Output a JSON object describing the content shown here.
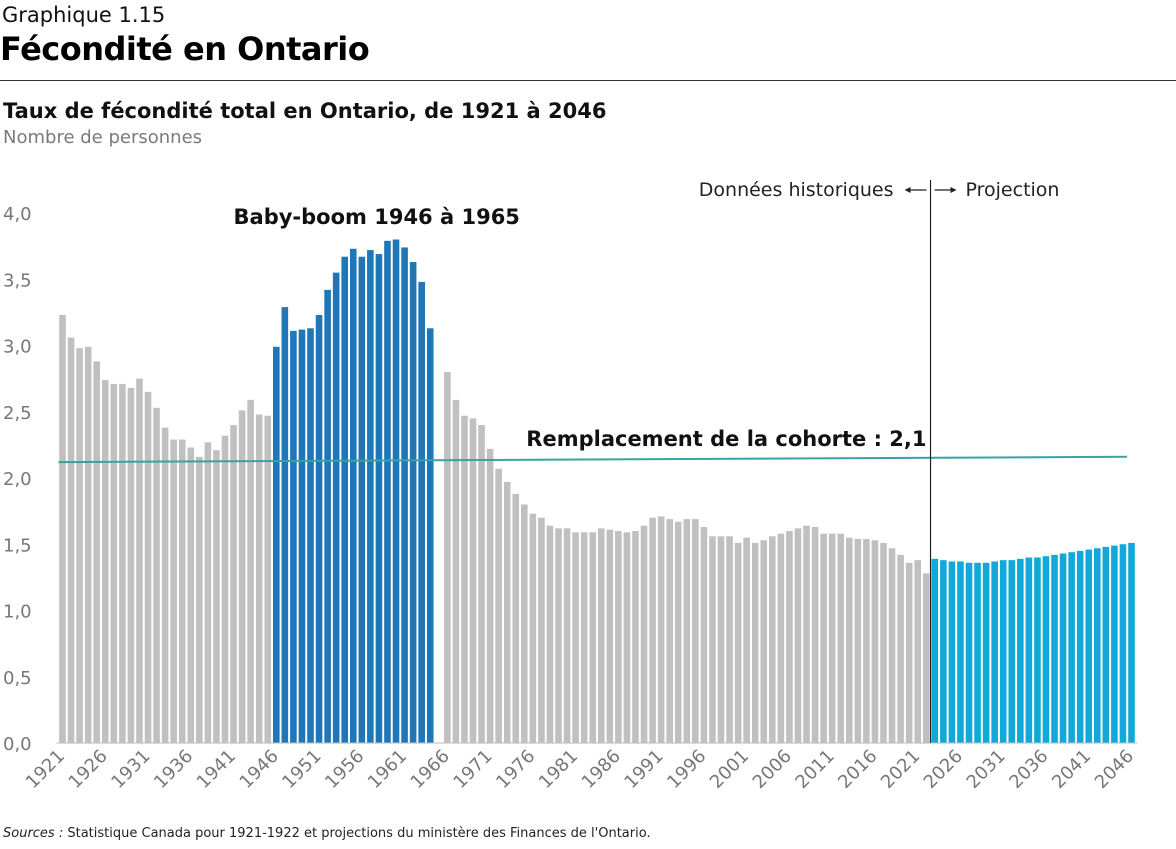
{
  "header": {
    "kicker": "Graphique 1.15",
    "title": "Fécondité en Ontario"
  },
  "chart_data": {
    "type": "bar",
    "title": "Taux de fécondité total en Ontario, de 1921 à 2046",
    "subtitle": "Nombre de personnes",
    "ylim": [
      0,
      4
    ],
    "yticks": [
      "0,0",
      "0,5",
      "1,0",
      "1,5",
      "2,0",
      "2,5",
      "3,0",
      "3,5",
      "4,0"
    ],
    "xtick_labels": [
      "1921",
      "1926",
      "1931",
      "1936",
      "1941",
      "1946",
      "1951",
      "1956",
      "1961",
      "1966",
      "1971",
      "1976",
      "1981",
      "1986",
      "1991",
      "1996",
      "2001",
      "2006",
      "2011",
      "2016",
      "2021",
      "2026",
      "2031",
      "2036",
      "2041",
      "2046"
    ],
    "categories": [
      1921,
      1922,
      1923,
      1924,
      1925,
      1926,
      1927,
      1928,
      1929,
      1930,
      1931,
      1932,
      1933,
      1934,
      1935,
      1936,
      1937,
      1938,
      1939,
      1940,
      1941,
      1942,
      1943,
      1944,
      1945,
      1946,
      1947,
      1948,
      1949,
      1950,
      1951,
      1952,
      1953,
      1954,
      1955,
      1956,
      1957,
      1958,
      1959,
      1960,
      1961,
      1962,
      1963,
      1964,
      1965,
      1966,
      1967,
      1968,
      1969,
      1970,
      1971,
      1972,
      1973,
      1974,
      1975,
      1976,
      1977,
      1978,
      1979,
      1980,
      1981,
      1982,
      1983,
      1984,
      1985,
      1986,
      1987,
      1988,
      1989,
      1990,
      1991,
      1992,
      1993,
      1994,
      1995,
      1996,
      1997,
      1998,
      1999,
      2000,
      2001,
      2002,
      2003,
      2004,
      2005,
      2006,
      2007,
      2008,
      2009,
      2010,
      2011,
      2012,
      2013,
      2014,
      2015,
      2016,
      2017,
      2018,
      2019,
      2020,
      2021,
      2022,
      2023,
      2024,
      2025,
      2026,
      2027,
      2028,
      2029,
      2030,
      2031,
      2032,
      2033,
      2034,
      2035,
      2036,
      2037,
      2038,
      2039,
      2040,
      2041,
      2042,
      2043,
      2044,
      2045,
      2046
    ],
    "series": [
      {
        "color": "#c0c0c0",
        "values": [
          3.23,
          3.06,
          2.98,
          2.99,
          2.88,
          2.74,
          2.71,
          2.71,
          2.68,
          2.75,
          2.65,
          2.53,
          2.38,
          2.29,
          2.29,
          2.23,
          2.16,
          2.27,
          2.21,
          2.32,
          2.4,
          2.51,
          2.59,
          2.48,
          2.47,
          null,
          null,
          null,
          null,
          null,
          null,
          null,
          null,
          null,
          null,
          null,
          null,
          null,
          null,
          null,
          null,
          null,
          null,
          null,
          null,
          2.8,
          2.59,
          2.47,
          2.45,
          2.4,
          2.22,
          2.07,
          1.97,
          1.88,
          1.8,
          1.73,
          1.7,
          1.64,
          1.62,
          1.62,
          1.59,
          1.59,
          1.59,
          1.62,
          1.61,
          1.6,
          1.59,
          1.6,
          1.64,
          1.7,
          1.71,
          1.69,
          1.67,
          1.69,
          1.69,
          1.63,
          1.56,
          1.56,
          1.56,
          1.51,
          1.55,
          1.51,
          1.53,
          1.56,
          1.58,
          1.6,
          1.62,
          1.64,
          1.63,
          1.58,
          1.58,
          1.58,
          1.55,
          1.54,
          1.54,
          1.53,
          1.51,
          1.47,
          1.42,
          1.36,
          1.38,
          1.28,
          null,
          null,
          null,
          null,
          null,
          null,
          null,
          null,
          null,
          null,
          null,
          null,
          null,
          null,
          null,
          null,
          null,
          null,
          null,
          null,
          null,
          null,
          null,
          null
        ]
      },
      {
        "color": "#1f77b8",
        "values": [
          null,
          null,
          null,
          null,
          null,
          null,
          null,
          null,
          null,
          null,
          null,
          null,
          null,
          null,
          null,
          null,
          null,
          null,
          null,
          null,
          null,
          null,
          null,
          null,
          null,
          2.99,
          3.29,
          3.11,
          3.12,
          3.13,
          3.23,
          3.42,
          3.55,
          3.67,
          3.73,
          3.67,
          3.72,
          3.69,
          3.79,
          3.8,
          3.74,
          3.63,
          3.48,
          3.13,
          null,
          null,
          null,
          null,
          null,
          null,
          null,
          null,
          null,
          null,
          null,
          null,
          null,
          null,
          null,
          null,
          null,
          null,
          null,
          null,
          null,
          null,
          null,
          null,
          null,
          null,
          null,
          null,
          null,
          null,
          null,
          null,
          null,
          null,
          null,
          null,
          null,
          null,
          null,
          null,
          null,
          null,
          null,
          null,
          null,
          null,
          null,
          null,
          null,
          null,
          null,
          null,
          null,
          null,
          null,
          null,
          null,
          null,
          null,
          null,
          null,
          null,
          null,
          null,
          null,
          null,
          null,
          null,
          null,
          null,
          null,
          null,
          null,
          null,
          null,
          null,
          null,
          null,
          null,
          null,
          null,
          null
        ]
      },
      {
        "color": "#11a9d9",
        "values": [
          null,
          null,
          null,
          null,
          null,
          null,
          null,
          null,
          null,
          null,
          null,
          null,
          null,
          null,
          null,
          null,
          null,
          null,
          null,
          null,
          null,
          null,
          null,
          null,
          null,
          null,
          null,
          null,
          null,
          null,
          null,
          null,
          null,
          null,
          null,
          null,
          null,
          null,
          null,
          null,
          null,
          null,
          null,
          null,
          null,
          null,
          null,
          null,
          null,
          null,
          null,
          null,
          null,
          null,
          null,
          null,
          null,
          null,
          null,
          null,
          null,
          null,
          null,
          null,
          null,
          null,
          null,
          null,
          null,
          null,
          null,
          null,
          null,
          null,
          null,
          null,
          null,
          null,
          null,
          null,
          null,
          null,
          null,
          null,
          null,
          null,
          null,
          null,
          null,
          null,
          null,
          null,
          null,
          null,
          null,
          null,
          null,
          null,
          null,
          null,
          null,
          null,
          1.39,
          1.38,
          1.37,
          1.37,
          1.36,
          1.36,
          1.36,
          1.37,
          1.38,
          1.38,
          1.39,
          1.4,
          1.4,
          1.41,
          1.42,
          1.43,
          1.44,
          1.45,
          1.46,
          1.47,
          1.48,
          1.49,
          1.5,
          1.51
        ]
      }
    ],
    "replacement_line": {
      "label": "Remplacement de la cohorte : 2,1",
      "color": "#3aa39f",
      "from": [
        1921,
        2.12
      ],
      "to": [
        2045,
        2.16
      ]
    },
    "divider": {
      "after_year": 2022,
      "left_label": "Données historiques",
      "right_label": "Projection"
    },
    "annotations": {
      "baby_boom": "Baby-boom 1946 à 1965"
    },
    "grid": false,
    "legend": "none"
  },
  "sources": {
    "label": "Sources :",
    "text": " Statistique Canada pour 1921-1922 et projections du ministère des Finances de l'Ontario."
  }
}
